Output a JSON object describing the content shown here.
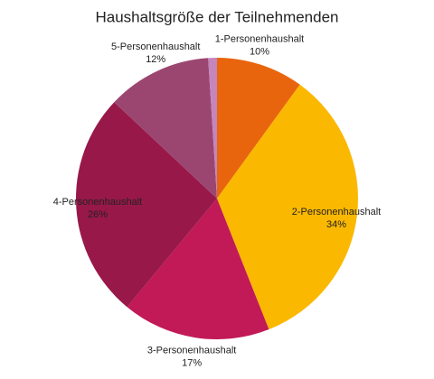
{
  "chart_data": {
    "type": "pie",
    "title": "Haushaltsgröße der Teilnehmenden",
    "categories": [
      "1-Personenhaushalt",
      "2-Personenhaushalt",
      "3-Personenhaushalt",
      "4-Personenhaushalt",
      "5-Personenhaushalt",
      null
    ],
    "values": [
      10,
      34,
      17,
      26,
      12,
      1
    ],
    "value_labels": [
      "10%",
      "34%",
      "17%",
      "26%",
      "12%",
      null
    ],
    "colors": [
      "#e8650d",
      "#fbb800",
      "#c11a56",
      "#981849",
      "#9b4670",
      "#c585bd"
    ]
  }
}
